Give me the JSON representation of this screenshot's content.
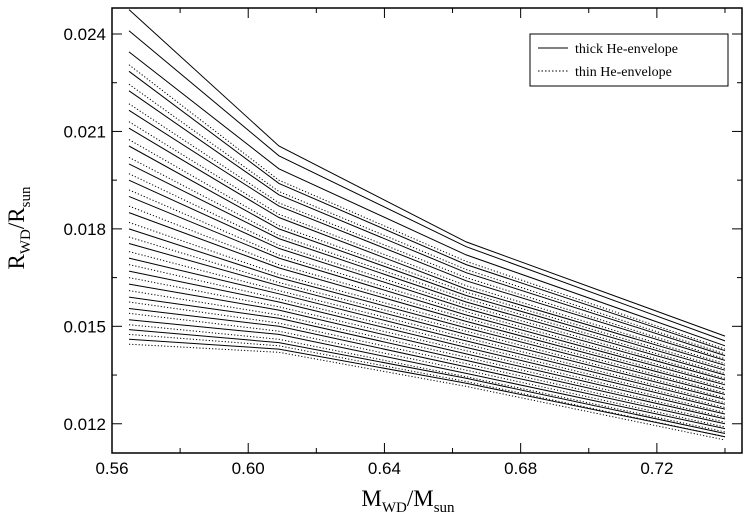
{
  "chart_data": {
    "type": "line",
    "title": "",
    "xlabel": {
      "main": "M",
      "sub": "WD",
      "sep": "/",
      "main2": "M",
      "sub2": "sun"
    },
    "ylabel": {
      "main": "R",
      "sub": "WD",
      "sep": "/",
      "main2": "R",
      "sub2": "sun"
    },
    "xlim": [
      0.56,
      0.745
    ],
    "ylim": [
      0.0111,
      0.0248
    ],
    "xticks": [
      0.56,
      0.6,
      0.64,
      0.68,
      0.72
    ],
    "xtick_labels": [
      "0.56",
      "0.60",
      "0.64",
      "0.68",
      "0.72"
    ],
    "yticks": [
      0.012,
      0.015,
      0.018,
      0.021,
      0.024
    ],
    "ytick_labels": [
      "0.012",
      "0.015",
      "0.018",
      "0.021",
      "0.024"
    ],
    "grid": false,
    "legend": {
      "placement": "top-right",
      "entries": [
        {
          "label": "thick He-envelope",
          "style": "solid"
        },
        {
          "label": "thin He-envelope",
          "style": "dotted"
        }
      ]
    },
    "x": [
      0.565,
      0.609,
      0.664,
      0.74
    ],
    "solid_series": [
      [
        0.02475,
        0.02055,
        0.0176,
        0.0147
      ],
      [
        0.0241,
        0.02025,
        0.01745,
        0.01455
      ],
      [
        0.02345,
        0.01985,
        0.0172,
        0.0144
      ],
      [
        0.02285,
        0.0194,
        0.0169,
        0.01425
      ],
      [
        0.02225,
        0.01905,
        0.01665,
        0.0141
      ],
      [
        0.02165,
        0.0187,
        0.0164,
        0.01395
      ],
      [
        0.0211,
        0.01835,
        0.01615,
        0.0138
      ],
      [
        0.02055,
        0.018,
        0.01595,
        0.01365
      ],
      [
        0.02,
        0.0177,
        0.01575,
        0.0135
      ],
      [
        0.0195,
        0.0174,
        0.01555,
        0.01335
      ],
      [
        0.019,
        0.0171,
        0.01535,
        0.0132
      ],
      [
        0.0185,
        0.0168,
        0.01515,
        0.01305
      ],
      [
        0.018,
        0.0165,
        0.01495,
        0.0129
      ],
      [
        0.01755,
        0.01625,
        0.01475,
        0.01275
      ],
      [
        0.0171,
        0.016,
        0.01455,
        0.0126
      ],
      [
        0.0167,
        0.01575,
        0.01435,
        0.01245
      ],
      [
        0.0163,
        0.0155,
        0.01415,
        0.0123
      ],
      [
        0.0159,
        0.01525,
        0.01395,
        0.01215
      ],
      [
        0.01555,
        0.015,
        0.01375,
        0.012
      ],
      [
        0.0152,
        0.01475,
        0.01355,
        0.01185
      ],
      [
        0.0149,
        0.0145,
        0.0134,
        0.0117
      ],
      [
        0.0146,
        0.0143,
        0.01325,
        0.0116
      ]
    ],
    "dotted_series": [
      [
        0.02305,
        0.0195,
        0.017,
        0.0143
      ],
      [
        0.02245,
        0.01915,
        0.01675,
        0.01415
      ],
      [
        0.02185,
        0.0188,
        0.0165,
        0.014
      ],
      [
        0.0213,
        0.01845,
        0.01625,
        0.01385
      ],
      [
        0.02075,
        0.0181,
        0.01605,
        0.0137
      ],
      [
        0.0202,
        0.0178,
        0.01585,
        0.01355
      ],
      [
        0.0197,
        0.0175,
        0.01565,
        0.0134
      ],
      [
        0.0192,
        0.0172,
        0.01545,
        0.01325
      ],
      [
        0.0187,
        0.0169,
        0.01525,
        0.0131
      ],
      [
        0.0182,
        0.0166,
        0.01505,
        0.01295
      ],
      [
        0.01775,
        0.01635,
        0.01485,
        0.0128
      ],
      [
        0.0173,
        0.0161,
        0.01465,
        0.01265
      ],
      [
        0.0169,
        0.01585,
        0.01445,
        0.0125
      ],
      [
        0.0165,
        0.0156,
        0.01425,
        0.01235
      ],
      [
        0.0161,
        0.01535,
        0.01405,
        0.0122
      ],
      [
        0.01575,
        0.0151,
        0.01385,
        0.01205
      ],
      [
        0.0154,
        0.01485,
        0.01365,
        0.0119
      ],
      [
        0.01505,
        0.0146,
        0.01345,
        0.01175
      ],
      [
        0.01475,
        0.0144,
        0.0133,
        0.0116
      ],
      [
        0.01445,
        0.0142,
        0.01315,
        0.0115
      ]
    ]
  }
}
